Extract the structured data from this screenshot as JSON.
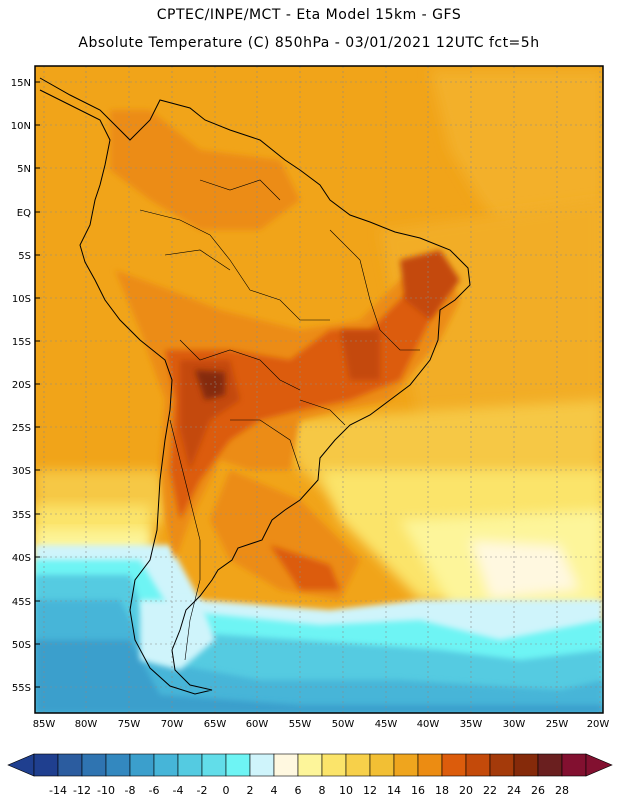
{
  "title": {
    "line1": "CPTEC/INPE/MCT -  Eta Model 15km - GFS",
    "line2": "Absolute Temperature (C) 850hPa - 03/01/2021 12UTC fct=5h"
  },
  "lat_labels": [
    "15N",
    "10N",
    "5N",
    "EQ",
    "5S",
    "10S",
    "15S",
    "20S",
    "25S",
    "30S",
    "35S",
    "40S",
    "45S",
    "50S",
    "55S"
  ],
  "lon_labels": [
    "85W",
    "80W",
    "75W",
    "70W",
    "65W",
    "60W",
    "55W",
    "50W",
    "45W",
    "40W",
    "35W",
    "30W",
    "25W",
    "20W"
  ],
  "colorbar": {
    "ticks": [
      "-14",
      "-12",
      "-10",
      "-8",
      "-6",
      "-4",
      "-2",
      "0",
      "2",
      "4",
      "6",
      "8",
      "10",
      "12",
      "14",
      "16",
      "18",
      "20",
      "22",
      "24",
      "26",
      "28"
    ],
    "colors": [
      "#1f3f8f",
      "#2b5c9f",
      "#2f74b1",
      "#3388bf",
      "#3b9fcc",
      "#46b5d8",
      "#54cbe1",
      "#62dde9",
      "#6ef4f4",
      "#cff4fb",
      "#fff8e0",
      "#fdf59a",
      "#fbe46a",
      "#f7d04a",
      "#f2bf34",
      "#efa51e",
      "#ec8c12",
      "#dc5c0c",
      "#c44a0a",
      "#a43a0a",
      "#852a0a",
      "#6a1f1f",
      "#821030"
    ]
  },
  "background_color": "#f1a419"
}
